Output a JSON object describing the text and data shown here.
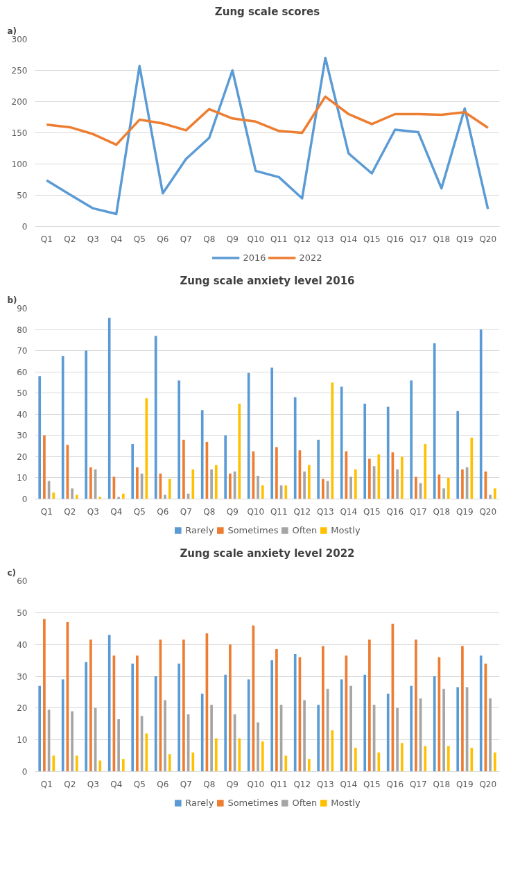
{
  "chart_data": [
    {
      "type": "line",
      "title": "Zung scale scores",
      "annotations": [
        "a)"
      ],
      "categories": [
        "Q1",
        "Q2",
        "Q3",
        "Q4",
        "Q5",
        "Q6",
        "Q7",
        "Q8",
        "Q9",
        "Q10",
        "Q11",
        "Q12",
        "Q13",
        "Q14",
        "Q15",
        "Q16",
        "Q17",
        "Q18",
        "Q19",
        "Q20"
      ],
      "series": [
        {
          "name": "2016",
          "color": "#5b9bd5",
          "values": [
            74,
            51,
            29,
            20,
            257,
            53,
            108,
            142,
            250,
            89,
            79,
            45,
            270,
            117,
            85,
            155,
            151,
            61,
            189,
            28
          ]
        },
        {
          "name": "2022",
          "color": "#ed7d31",
          "values": [
            163,
            159,
            148,
            131,
            171,
            165,
            154,
            188,
            173,
            168,
            153,
            150,
            208,
            180,
            164,
            180,
            180,
            179,
            183,
            158
          ]
        }
      ],
      "ylim": [
        0,
        300
      ],
      "yticks": [
        0,
        50,
        100,
        150,
        200,
        250,
        300
      ],
      "grid": "y",
      "legend": "bottom",
      "line_style": "solid"
    },
    {
      "type": "bar",
      "title": "Zung scale anxiety level 2016",
      "annotations": [
        "b)"
      ],
      "categories": [
        "Q1",
        "Q2",
        "Q3",
        "Q4",
        "Q5",
        "Q6",
        "Q7",
        "Q8",
        "Q9",
        "Q10",
        "Q11",
        "Q12",
        "Q13",
        "Q14",
        "Q15",
        "Q16",
        "Q17",
        "Q18",
        "Q19",
        "Q20"
      ],
      "series": [
        {
          "name": "Rarely",
          "color": "#5b9bd5",
          "values": [
            58,
            67.5,
            70,
            85.5,
            26,
            77,
            56,
            42,
            30,
            59.5,
            62,
            48,
            28,
            53,
            45,
            43.5,
            56,
            73.5,
            41.5,
            80
          ]
        },
        {
          "name": "Sometimes",
          "color": "#ed7d31",
          "values": [
            30,
            25.5,
            15,
            10.5,
            15,
            12,
            28,
            27,
            12,
            22.5,
            24.5,
            23,
            9.5,
            22.5,
            19,
            22,
            10.5,
            11.5,
            14,
            13
          ]
        },
        {
          "name": "Often",
          "color": "#a5a5a5",
          "values": [
            8.5,
            5,
            14,
            1,
            12,
            2,
            2.5,
            14,
            13,
            11,
            6.5,
            13,
            8.5,
            10.5,
            15.5,
            14,
            7.5,
            5,
            15,
            2
          ]
        },
        {
          "name": "Mostly",
          "color": "#ffc000",
          "values": [
            3,
            2,
            1,
            2.5,
            47.5,
            9.5,
            14,
            16,
            45,
            6.5,
            6.5,
            16,
            55,
            14,
            21,
            20,
            26,
            10,
            29,
            5
          ]
        }
      ],
      "ylim": [
        0,
        90
      ],
      "yticks": [
        0,
        10,
        20,
        30,
        40,
        50,
        60,
        70,
        80,
        90
      ],
      "grid": "y",
      "legend": "bottom"
    },
    {
      "type": "bar",
      "title": "Zung scale anxiety level 2022",
      "annotations": [
        "c)"
      ],
      "categories": [
        "Q1",
        "Q2",
        "Q3",
        "Q4",
        "Q5",
        "Q6",
        "Q7",
        "Q8",
        "Q9",
        "Q10",
        "Q11",
        "Q12",
        "Q13",
        "Q14",
        "Q15",
        "Q16",
        "Q17",
        "Q18",
        "Q19",
        "Q20"
      ],
      "series": [
        {
          "name": "Rarely",
          "color": "#5b9bd5",
          "values": [
            27,
            29,
            34.5,
            43,
            34,
            30,
            34,
            24.5,
            30.5,
            29,
            35,
            37,
            21,
            29,
            30.5,
            24.5,
            27,
            30,
            26.5,
            36.5
          ]
        },
        {
          "name": "Sometimes",
          "color": "#ed7d31",
          "values": [
            48,
            47,
            41.5,
            36.5,
            36.5,
            41.5,
            41.5,
            43.5,
            40,
            46,
            38.5,
            36,
            39.5,
            36.5,
            41.5,
            46.5,
            41.5,
            36,
            39.5,
            34
          ]
        },
        {
          "name": "Often",
          "color": "#a5a5a5",
          "values": [
            19.5,
            19,
            20,
            16.5,
            17.5,
            22.5,
            18,
            21,
            18,
            15.5,
            21,
            22.5,
            26,
            27,
            21,
            20,
            23,
            26,
            26.5,
            23
          ]
        },
        {
          "name": "Mostly",
          "color": "#ffc000",
          "values": [
            5,
            5,
            3.5,
            4,
            12,
            5.5,
            6,
            10.5,
            10.5,
            9.5,
            5,
            4,
            13,
            7.5,
            6,
            9,
            8,
            8,
            7.5,
            6
          ]
        }
      ],
      "ylim": [
        0,
        60
      ],
      "yticks": [
        0,
        10,
        20,
        30,
        40,
        50,
        60
      ],
      "grid": "y",
      "legend": "bottom"
    }
  ]
}
